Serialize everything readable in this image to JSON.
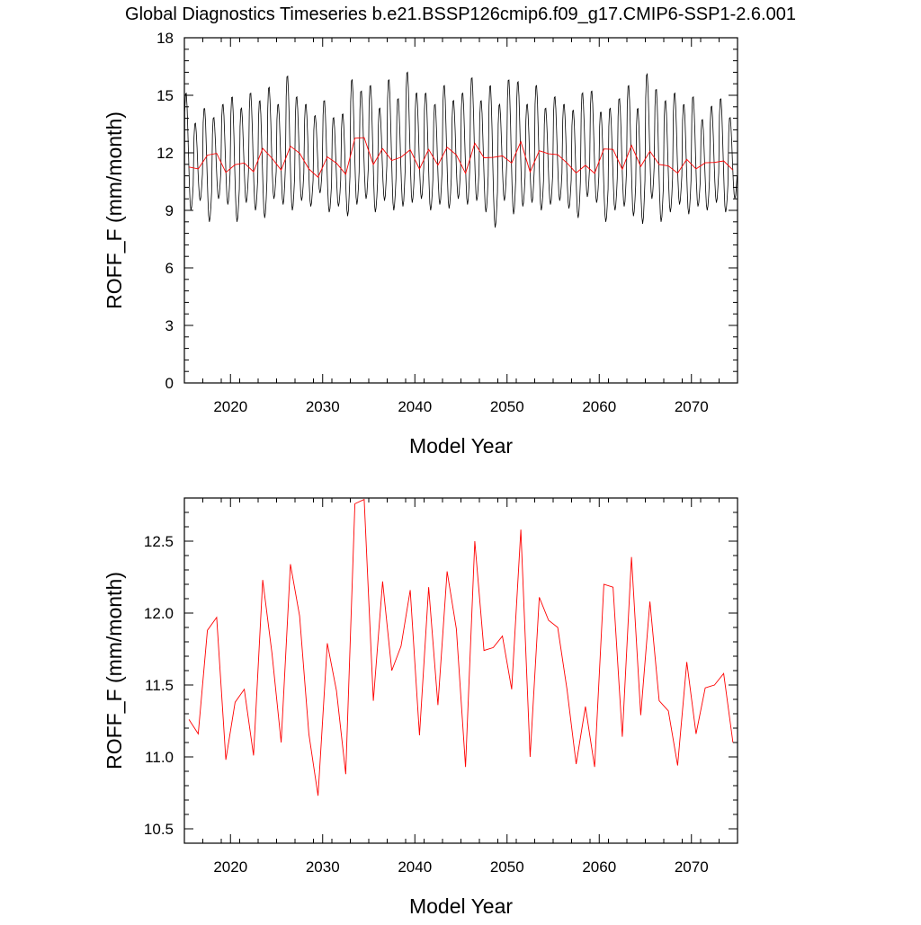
{
  "title": "Global Diagnostics Timeseries b.e21.BSSP126cmip6.f09_g17.CMIP6-SSP1-2.6.001",
  "colors": {
    "monthly": "#000000",
    "annual": "#ff0000",
    "axes": "#000000"
  },
  "chart_data": [
    {
      "type": "line",
      "xlabel": "Model Year",
      "ylabel": "ROFF_F (mm/month)",
      "xlim": [
        2015,
        2075
      ],
      "ylim": [
        0,
        18
      ],
      "xticks": [
        2020,
        2030,
        2040,
        2050,
        2060,
        2070
      ],
      "yticks": [
        0,
        3,
        6,
        9,
        12,
        15,
        18
      ],
      "grid": false,
      "series": [
        {
          "style": "monthly",
          "seasonal_peaks": [
            15.2,
            13.6,
            14.4,
            13.9,
            14.6,
            15.0,
            14.4,
            15.2,
            14.8,
            15.5,
            14.6,
            16.1,
            15.0,
            14.6,
            14.0,
            14.8,
            13.9,
            14.1,
            15.9,
            15.3,
            15.6,
            14.4,
            15.9,
            14.9,
            16.3,
            15.2,
            15.2,
            14.6,
            15.6,
            14.8,
            15.2,
            16.0,
            14.8,
            15.6,
            14.6,
            15.9,
            15.8,
            14.6,
            15.6,
            14.4,
            15.0,
            14.6,
            14.3,
            15.2,
            15.3,
            14.2,
            14.4,
            14.9,
            15.6,
            14.4,
            16.2,
            15.4,
            14.8,
            15.2,
            14.6,
            15.0,
            13.8,
            14.5,
            14.9,
            13.9
          ],
          "seasonal_troughs": [
            9.0,
            9.5,
            8.4,
            9.6,
            9.3,
            8.4,
            9.4,
            9.0,
            8.6,
            9.6,
            9.3,
            9.0,
            9.5,
            9.2,
            9.9,
            8.9,
            9.2,
            8.7,
            9.3,
            9.6,
            8.9,
            9.5,
            9.0,
            9.2,
            9.4,
            9.6,
            9.0,
            9.3,
            9.1,
            9.6,
            9.3,
            9.5,
            8.9,
            8.1,
            9.5,
            8.8,
            9.2,
            9.4,
            9.0,
            9.3,
            9.5,
            9.1,
            8.6,
            9.7,
            9.4,
            8.4,
            9.0,
            9.2,
            8.7,
            8.3,
            9.6,
            8.4,
            8.9,
            9.3,
            8.8,
            9.2,
            9.0,
            9.4,
            8.9,
            9.6
          ]
        },
        {
          "style": "annual",
          "x": [
            2015.5,
            2016.5,
            2017.5,
            2018.5,
            2019.5,
            2020.5,
            2021.5,
            2022.5,
            2023.5,
            2024.5,
            2025.5,
            2026.5,
            2027.5,
            2028.5,
            2029.5,
            2030.5,
            2031.5,
            2032.5,
            2033.5,
            2034.5,
            2035.5,
            2036.5,
            2037.5,
            2038.5,
            2039.5,
            2040.5,
            2041.5,
            2042.5,
            2043.5,
            2044.5,
            2045.5,
            2046.5,
            2047.5,
            2048.5,
            2049.5,
            2050.5,
            2051.5,
            2052.5,
            2053.5,
            2054.5,
            2055.5,
            2056.5,
            2057.5,
            2058.5,
            2059.5,
            2060.5,
            2061.5,
            2062.5,
            2063.5,
            2064.5,
            2065.5,
            2066.5,
            2067.5,
            2068.5,
            2069.5,
            2070.5,
            2071.5,
            2072.5,
            2073.5,
            2074.5
          ],
          "values": [
            11.26,
            11.16,
            11.88,
            11.97,
            10.98,
            11.38,
            11.47,
            11.01,
            12.23,
            11.72,
            11.1,
            12.34,
            11.98,
            11.16,
            10.73,
            11.79,
            11.46,
            10.88,
            12.76,
            12.79,
            11.39,
            12.22,
            11.6,
            11.77,
            12.16,
            11.15,
            12.18,
            11.36,
            12.29,
            11.89,
            10.93,
            12.5,
            11.74,
            11.76,
            11.84,
            11.47,
            12.58,
            11.0,
            12.11,
            11.95,
            11.9,
            11.47,
            10.95,
            11.35,
            10.93,
            12.2,
            12.18,
            11.14,
            12.39,
            11.29,
            12.08,
            11.39,
            11.32,
            10.94,
            11.66,
            11.16,
            11.48,
            11.5,
            11.58,
            11.1
          ]
        }
      ]
    },
    {
      "type": "line",
      "xlabel": "Model Year",
      "ylabel": "ROFF_F (mm/month)",
      "xlim": [
        2015,
        2075
      ],
      "ylim": [
        10.4,
        12.8
      ],
      "xticks": [
        2020,
        2030,
        2040,
        2050,
        2060,
        2070
      ],
      "yticks": [
        10.5,
        11.0,
        11.5,
        12.0,
        12.5
      ],
      "ytick_labels": [
        "10.5",
        "11.0",
        "11.5",
        "12.0",
        "12.5"
      ],
      "grid": false,
      "series": [
        {
          "style": "annual",
          "ref": "chart_data.0.series.1"
        }
      ]
    }
  ]
}
